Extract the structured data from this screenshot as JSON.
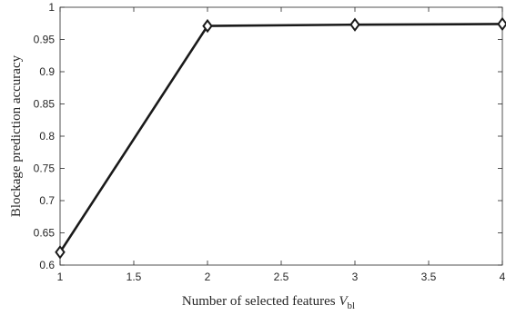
{
  "chart_data": {
    "type": "line",
    "xlabel": "Number of selected features",
    "xlabel_symbol": "V",
    "xlabel_subscript": "bl",
    "ylabel": "Blockage prediction accuracy",
    "xlim": [
      1,
      4
    ],
    "ylim": [
      0.6,
      1.0
    ],
    "x_ticks": [
      "1",
      "1.5",
      "2",
      "2.5",
      "3",
      "3.5",
      "4"
    ],
    "y_ticks": [
      "0.6",
      "0.65",
      "0.7",
      "0.75",
      "0.8",
      "0.85",
      "0.9",
      "0.95",
      "1"
    ],
    "grid": false,
    "series": [
      {
        "marker": "diamond",
        "color": "#1a1a1a",
        "x": [
          1,
          2,
          3,
          4
        ],
        "y": [
          0.62,
          0.971,
          0.973,
          0.974
        ]
      }
    ]
  }
}
